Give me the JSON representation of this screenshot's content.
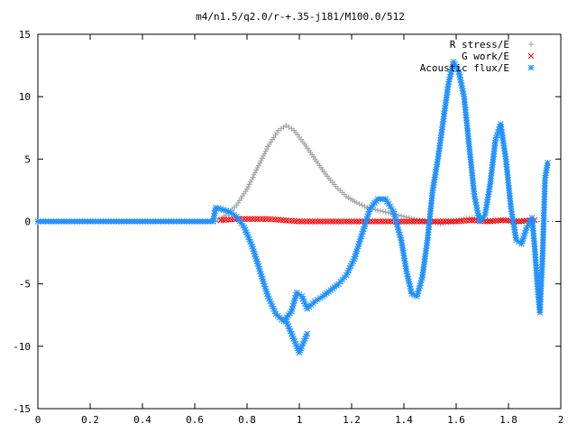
{
  "chart_data": {
    "type": "scatter",
    "title": "m4/n1.5/q2.0/r-+.35-j181/M100.0/512",
    "xlabel": "",
    "ylabel": "",
    "xlim": [
      0,
      2
    ],
    "ylim": [
      -15,
      15
    ],
    "x_ticks": [
      "0",
      "0.2",
      "0.4",
      "0.6",
      "0.8",
      "1",
      "1.2",
      "1.4",
      "1.6",
      "1.8",
      "2"
    ],
    "y_ticks": [
      "15",
      "10",
      "5",
      "0",
      "-5",
      "-10",
      "-15"
    ],
    "x_tick_values": [
      0,
      0.2,
      0.4,
      0.6,
      0.8,
      1.0,
      1.2,
      1.4,
      1.6,
      1.8,
      2.0
    ],
    "y_tick_values": [
      15,
      10,
      5,
      0,
      -5,
      -10,
      -15
    ],
    "grid": false,
    "legend_position": "top-right",
    "series": [
      {
        "name": "R stress/E",
        "marker": "plus",
        "color": "#a0a0a0",
        "points": [
          [
            0.68,
            0.0
          ],
          [
            0.72,
            0.5
          ],
          [
            0.76,
            1.3
          ],
          [
            0.8,
            2.6
          ],
          [
            0.84,
            4.3
          ],
          [
            0.88,
            6.0
          ],
          [
            0.92,
            7.3
          ],
          [
            0.95,
            7.7
          ],
          [
            0.98,
            7.3
          ],
          [
            1.02,
            6.2
          ],
          [
            1.06,
            5.0
          ],
          [
            1.1,
            3.8
          ],
          [
            1.14,
            2.8
          ],
          [
            1.18,
            2.0
          ],
          [
            1.22,
            1.5
          ],
          [
            1.26,
            1.1
          ],
          [
            1.3,
            0.9
          ],
          [
            1.34,
            0.7
          ],
          [
            1.38,
            0.5
          ],
          [
            1.42,
            0.3
          ],
          [
            1.46,
            0.1
          ],
          [
            1.5,
            0.0
          ],
          [
            1.54,
            -0.2
          ],
          [
            1.58,
            0.0
          ],
          [
            1.62,
            0.2
          ],
          [
            1.66,
            0.3
          ],
          [
            1.7,
            0.2
          ],
          [
            1.74,
            0.0
          ],
          [
            1.78,
            0.1
          ],
          [
            1.82,
            0.0
          ],
          [
            1.86,
            0.1
          ],
          [
            1.9,
            0.0
          ]
        ]
      },
      {
        "name": "G work/E",
        "marker": "cross",
        "color": "#ff0000",
        "points": [
          [
            0.7,
            0.1
          ],
          [
            0.76,
            0.2
          ],
          [
            0.82,
            0.2
          ],
          [
            0.88,
            0.2
          ],
          [
            0.94,
            0.1
          ],
          [
            1.0,
            0.0
          ],
          [
            1.06,
            0.0
          ],
          [
            1.12,
            0.0
          ],
          [
            1.18,
            0.0
          ],
          [
            1.24,
            0.0
          ],
          [
            1.3,
            0.0
          ],
          [
            1.36,
            0.0
          ],
          [
            1.42,
            0.0
          ],
          [
            1.48,
            0.0
          ],
          [
            1.54,
            0.0
          ],
          [
            1.6,
            0.0
          ],
          [
            1.66,
            0.1
          ],
          [
            1.72,
            0.0
          ],
          [
            1.78,
            0.1
          ],
          [
            1.84,
            0.0
          ],
          [
            1.9,
            0.1
          ]
        ]
      },
      {
        "name": "Acoustic flux/E",
        "marker": "star",
        "color": "#1e90ff",
        "points": [
          [
            0.0,
            0.0
          ],
          [
            0.1,
            0.0
          ],
          [
            0.2,
            0.0
          ],
          [
            0.3,
            0.0
          ],
          [
            0.4,
            0.0
          ],
          [
            0.5,
            0.0
          ],
          [
            0.6,
            0.0
          ],
          [
            0.67,
            0.0
          ],
          [
            0.68,
            1.1
          ],
          [
            0.7,
            1.0
          ],
          [
            0.73,
            0.8
          ],
          [
            0.76,
            0.4
          ],
          [
            0.79,
            -0.5
          ],
          [
            0.82,
            -2.0
          ],
          [
            0.85,
            -4.0
          ],
          [
            0.88,
            -6.0
          ],
          [
            0.91,
            -7.4
          ],
          [
            0.94,
            -8.0
          ],
          [
            0.97,
            -7.2
          ],
          [
            0.99,
            -5.7
          ],
          [
            1.01,
            -6.0
          ],
          [
            1.03,
            -7.0
          ],
          [
            1.06,
            -6.4
          ],
          [
            1.09,
            -6.0
          ],
          [
            1.12,
            -5.5
          ],
          [
            1.15,
            -5.0
          ],
          [
            1.18,
            -4.3
          ],
          [
            1.21,
            -3.0
          ],
          [
            1.24,
            -1.0
          ],
          [
            1.27,
            1.0
          ],
          [
            1.3,
            1.8
          ],
          [
            1.33,
            1.8
          ],
          [
            1.36,
            0.8
          ],
          [
            1.39,
            -1.5
          ],
          [
            1.41,
            -4.0
          ],
          [
            1.43,
            -5.8
          ],
          [
            1.45,
            -6.0
          ],
          [
            1.47,
            -4.5
          ],
          [
            1.49,
            -1.5
          ],
          [
            1.51,
            2.5
          ],
          [
            1.53,
            5.0
          ],
          [
            1.55,
            8.0
          ],
          [
            1.57,
            11.0
          ],
          [
            1.59,
            12.8
          ],
          [
            1.61,
            12.0
          ],
          [
            1.63,
            10.0
          ],
          [
            1.65,
            6.0
          ],
          [
            1.67,
            2.0
          ],
          [
            1.69,
            0.0
          ],
          [
            1.71,
            0.5
          ],
          [
            1.73,
            3.0
          ],
          [
            1.75,
            6.5
          ],
          [
            1.77,
            7.8
          ],
          [
            1.79,
            5.0
          ],
          [
            1.81,
            1.0
          ],
          [
            1.83,
            -1.5
          ],
          [
            1.85,
            -1.8
          ],
          [
            1.87,
            -0.5
          ],
          [
            1.89,
            0.3
          ],
          [
            1.9,
            -2.0
          ],
          [
            1.91,
            -5.0
          ],
          [
            1.92,
            -7.3
          ],
          [
            1.93,
            -3.0
          ],
          [
            1.94,
            3.5
          ],
          [
            1.95,
            4.7
          ]
        ],
        "dips": [
          [
            0.95,
            -8.0
          ],
          [
            0.97,
            -9.0
          ],
          [
            0.99,
            -10.0
          ],
          [
            1.0,
            -10.5
          ],
          [
            1.01,
            -10.0
          ],
          [
            1.03,
            -9.0
          ]
        ]
      }
    ]
  }
}
